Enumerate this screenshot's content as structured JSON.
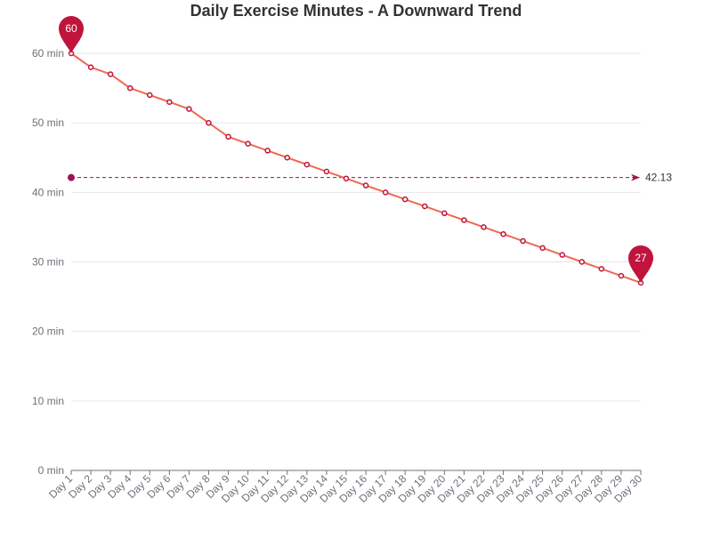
{
  "chart_data": {
    "type": "line",
    "title": "Daily Exercise Minutes - A Downward Trend",
    "xlabel": "",
    "ylabel": "",
    "categories": [
      "Day 1",
      "Day 2",
      "Day 3",
      "Day 4",
      "Day 5",
      "Day 6",
      "Day 7",
      "Day 8",
      "Day 9",
      "Day 10",
      "Day 11",
      "Day 12",
      "Day 13",
      "Day 14",
      "Day 15",
      "Day 16",
      "Day 17",
      "Day 18",
      "Day 19",
      "Day 20",
      "Day 21",
      "Day 22",
      "Day 23",
      "Day 24",
      "Day 25",
      "Day 26",
      "Day 27",
      "Day 28",
      "Day 29",
      "Day 30"
    ],
    "series": [
      {
        "values": [
          60,
          58,
          57,
          55,
          54,
          53,
          52,
          50,
          48,
          47,
          46,
          45,
          44,
          43,
          42,
          41,
          40,
          39,
          38,
          37,
          36,
          35,
          34,
          33,
          32,
          31,
          30,
          29,
          28,
          27
        ]
      }
    ],
    "ylim": [
      0,
      60
    ],
    "yticks": [
      0,
      10,
      20,
      30,
      40,
      50,
      60
    ],
    "ytick_labels": [
      "0 min",
      "10 min",
      "20 min",
      "30 min",
      "40 min",
      "50 min",
      "60 min"
    ],
    "grid": true,
    "mark_points": [
      {
        "label": "60",
        "category": "Day 1",
        "value": 60
      },
      {
        "label": "27",
        "category": "Day 30",
        "value": 27
      }
    ],
    "mark_line": {
      "value": 42.13,
      "label": "42.13"
    },
    "colors": {
      "line": "#ee6a50",
      "point": "#c0143c",
      "marker": "#c0143c",
      "average_line": "#a01050"
    }
  }
}
